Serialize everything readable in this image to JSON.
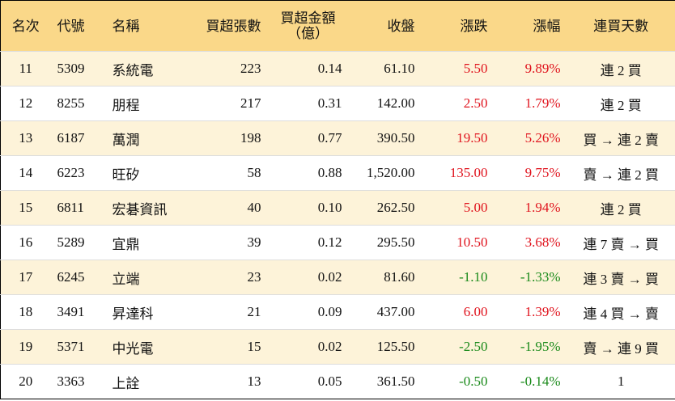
{
  "table": {
    "header": [
      "名次",
      "代號",
      "名稱",
      "買超張數",
      "買超金額\n（億）",
      "收盤",
      "漲跌",
      "漲幅",
      "連買天數"
    ],
    "rows": [
      [
        "11",
        "5309",
        "系統電",
        "223",
        "0.14",
        "61.10",
        "5.50",
        "9.89%",
        "連 2 買"
      ],
      [
        "12",
        "8255",
        "朋程",
        "217",
        "0.31",
        "142.00",
        "2.50",
        "1.79%",
        "連 2 買"
      ],
      [
        "13",
        "6187",
        "萬潤",
        "198",
        "0.77",
        "390.50",
        "19.50",
        "5.26%",
        "買 → 連 2 賣"
      ],
      [
        "14",
        "6223",
        "旺矽",
        "58",
        "0.88",
        "1,520.00",
        "135.00",
        "9.75%",
        "賣 → 連 2 買"
      ],
      [
        "15",
        "6811",
        "宏碁資訊",
        "40",
        "0.10",
        "262.50",
        "5.00",
        "1.94%",
        "連 2 買"
      ],
      [
        "16",
        "5289",
        "宜鼎",
        "39",
        "0.12",
        "295.50",
        "10.50",
        "3.68%",
        "連 7 賣 → 買"
      ],
      [
        "17",
        "6245",
        "立端",
        "23",
        "0.02",
        "81.60",
        "-1.10",
        "-1.33%",
        "連 3 賣 → 買"
      ],
      [
        "18",
        "3491",
        "昇達科",
        "21",
        "0.09",
        "437.00",
        "6.00",
        "1.39%",
        "連 4 買 → 賣"
      ],
      [
        "19",
        "5371",
        "中光電",
        "15",
        "0.02",
        "125.50",
        "-2.50",
        "-1.95%",
        "賣 → 連 9 買"
      ],
      [
        "20",
        "3363",
        "上詮",
        "13",
        "0.05",
        "361.50",
        "-0.50",
        "-0.14%",
        "1"
      ]
    ]
  }
}
